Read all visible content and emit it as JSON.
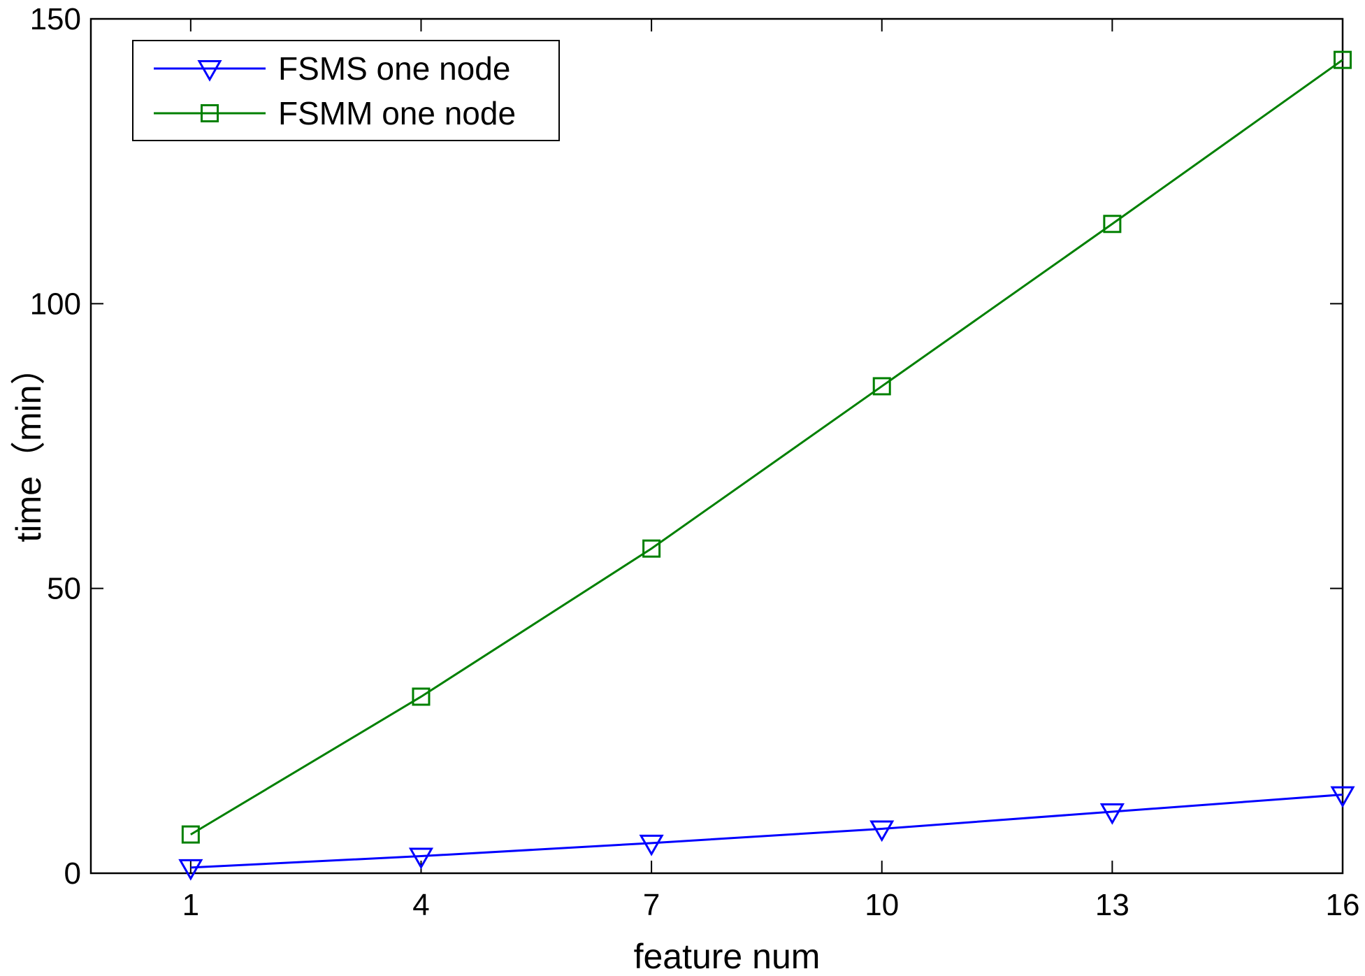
{
  "chart_data": {
    "type": "line",
    "title": "",
    "xlabel": "feature num",
    "ylabel": "time（min）",
    "x": [
      1,
      4,
      7,
      10,
      13,
      16
    ],
    "xlim": [
      -0.3,
      16
    ],
    "ylim": [
      0,
      150
    ],
    "xticks": [
      1,
      4,
      7,
      10,
      13,
      16
    ],
    "yticks": [
      0,
      50,
      100,
      150
    ],
    "grid": false,
    "legend_position": "top-left",
    "series": [
      {
        "name": "FSMS one node",
        "color": "#0000ff",
        "marker": "triangle-down",
        "values": [
          1,
          3,
          5.3,
          7.8,
          10.8,
          13.8
        ]
      },
      {
        "name": "FSMM one node",
        "color": "#008000",
        "marker": "square",
        "values": [
          6.8,
          31,
          57,
          85.5,
          114,
          142.8
        ]
      }
    ]
  }
}
